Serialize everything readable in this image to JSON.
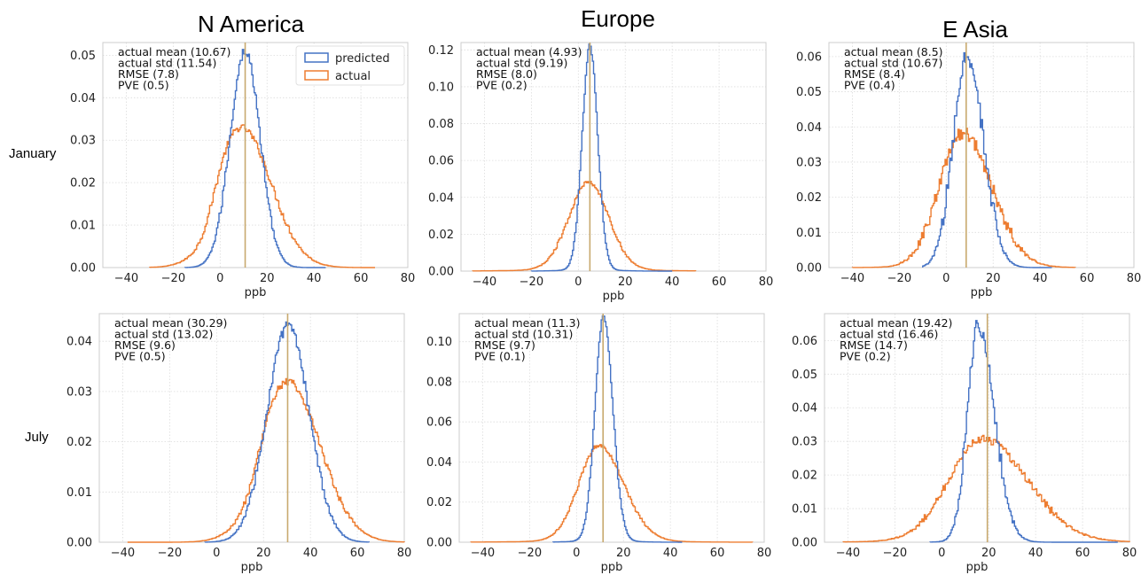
{
  "figure": {
    "columns": [
      "N America",
      "Europe",
      "E Asia"
    ],
    "rows": [
      "January",
      "July"
    ]
  },
  "legend": {
    "predicted": "predicted",
    "actual": "actual"
  },
  "colors": {
    "predicted": "#4472c4",
    "actual": "#ed7d31",
    "meanline": "#c8a96e",
    "grid": "#dcdcdc",
    "spine": "#cccccc"
  },
  "chart_data": [
    {
      "id": "jan-na",
      "type": "histogram",
      "xlabel": "ppb",
      "xlim": [
        -50,
        80
      ],
      "ylim": [
        0,
        0.053
      ],
      "xticks": [
        -40,
        -20,
        0,
        20,
        40,
        60,
        80
      ],
      "yticks": [
        0.0,
        0.01,
        0.02,
        0.03,
        0.04,
        0.05
      ],
      "ytick_labels": [
        "0.00",
        "0.01",
        "0.02",
        "0.03",
        "0.04",
        "0.05"
      ],
      "annotations": [
        "actual mean (10.67)",
        "actual std (11.54)",
        "RMSE (7.8)",
        "PVE (0.5)"
      ],
      "mean_line": 10.67,
      "show_legend": true,
      "series": [
        {
          "name": "predicted",
          "dist": {
            "mu": 10.67,
            "sigma": 6.4,
            "peak": 0.051,
            "skew": 0,
            "tails": 0,
            "noise": 0.0012
          },
          "range": [
            -15,
            45
          ]
        },
        {
          "name": "actual",
          "dist": {
            "mu": 9.0,
            "sigma": 11.54,
            "peak": 0.033,
            "skew": 0.1,
            "tails": 0,
            "noise": 0.0008,
            "flat": 0.5
          },
          "range": [
            -30,
            66
          ]
        }
      ]
    },
    {
      "id": "jan-eu",
      "type": "histogram",
      "xlabel": "ppb",
      "xlim": [
        -50,
        80
      ],
      "ylim": [
        0,
        0.124
      ],
      "xticks": [
        -40,
        -20,
        0,
        20,
        40,
        60,
        80
      ],
      "yticks": [
        0.0,
        0.02,
        0.04,
        0.06,
        0.08,
        0.1,
        0.12
      ],
      "ytick_labels": [
        "0.00",
        "0.02",
        "0.04",
        "0.06",
        "0.08",
        "0.10",
        "0.12"
      ],
      "annotations": [
        "actual mean (4.93)",
        "actual std (9.19)",
        "RMSE (8.0)",
        "PVE (0.2)"
      ],
      "mean_line": 4.93,
      "show_legend": false,
      "series": [
        {
          "name": "predicted",
          "dist": {
            "mu": 5.0,
            "sigma": 3.3,
            "peak": 0.119,
            "skew": 0,
            "tails": 0.15,
            "noise": 0.0015
          },
          "range": [
            -20,
            40
          ]
        },
        {
          "name": "actual",
          "dist": {
            "mu": 4.5,
            "sigma": 8.5,
            "peak": 0.046,
            "skew": 0,
            "tails": 0.3,
            "noise": 0.001
          },
          "range": [
            -45,
            50
          ]
        }
      ]
    },
    {
      "id": "jan-ea",
      "type": "histogram",
      "xlabel": "ppb",
      "xlim": [
        -50,
        80
      ],
      "ylim": [
        0,
        0.064
      ],
      "xticks": [
        -40,
        -20,
        0,
        20,
        40,
        60,
        80
      ],
      "yticks": [
        0.0,
        0.01,
        0.02,
        0.03,
        0.04,
        0.05,
        0.06
      ],
      "ytick_labels": [
        "0.00",
        "0.01",
        "0.02",
        "0.03",
        "0.04",
        "0.05",
        "0.06"
      ],
      "annotations": [
        "actual mean (8.5)",
        "actual std (10.67)",
        "RMSE (8.4)",
        "PVE (0.4)"
      ],
      "mean_line": 8.5,
      "show_legend": false,
      "series": [
        {
          "name": "predicted",
          "dist": {
            "mu": 9.0,
            "sigma": 6.0,
            "peak": 0.06,
            "skew": 0.15,
            "tails": 0,
            "noise": 0.0028
          },
          "range": [
            -10,
            45
          ]
        },
        {
          "name": "actual",
          "dist": {
            "mu": 7.0,
            "sigma": 10.0,
            "peak": 0.038,
            "skew": 0.25,
            "tails": 0.05,
            "noise": 0.0018
          },
          "range": [
            -40,
            55
          ]
        }
      ]
    },
    {
      "id": "jul-na",
      "type": "histogram",
      "xlabel": "ppb",
      "xlim": [
        -50,
        80
      ],
      "ylim": [
        0,
        0.0455
      ],
      "xticks": [
        -40,
        -20,
        0,
        20,
        40,
        60,
        80
      ],
      "yticks": [
        0.0,
        0.01,
        0.02,
        0.03,
        0.04
      ],
      "ytick_labels": [
        "0.00",
        "0.01",
        "0.02",
        "0.03",
        "0.04"
      ],
      "annotations": [
        "actual mean (30.29)",
        "actual std (13.02)",
        "RMSE (9.6)",
        "PVE (0.5)"
      ],
      "mean_line": 30.29,
      "show_legend": false,
      "series": [
        {
          "name": "predicted",
          "dist": {
            "mu": 30.5,
            "sigma": 9.0,
            "peak": 0.043,
            "skew": 0,
            "tails": 0,
            "noise": 0.001
          },
          "range": [
            -5,
            65
          ]
        },
        {
          "name": "actual",
          "dist": {
            "mu": 30.29,
            "sigma": 12.5,
            "peak": 0.032,
            "skew": 0.1,
            "tails": 0,
            "noise": 0.0007,
            "flat": 0.4
          },
          "range": [
            -38,
            80
          ]
        }
      ]
    },
    {
      "id": "jul-eu",
      "type": "histogram",
      "xlabel": "ppb",
      "xlim": [
        -50,
        80
      ],
      "ylim": [
        0,
        0.114
      ],
      "xticks": [
        -40,
        -20,
        0,
        20,
        40,
        60,
        80
      ],
      "yticks": [
        0.0,
        0.02,
        0.04,
        0.06,
        0.08,
        0.1
      ],
      "ytick_labels": [
        "0.00",
        "0.02",
        "0.04",
        "0.06",
        "0.08",
        "0.10"
      ],
      "annotations": [
        "actual mean (11.3)",
        "actual std (10.31)",
        "RMSE (9.7)",
        "PVE (0.1)"
      ],
      "mean_line": 11.3,
      "show_legend": false,
      "series": [
        {
          "name": "predicted",
          "dist": {
            "mu": 11.5,
            "sigma": 3.6,
            "peak": 0.11,
            "skew": 0.1,
            "tails": 0.15,
            "noise": 0.0013
          },
          "range": [
            -10,
            45
          ]
        },
        {
          "name": "actual",
          "dist": {
            "mu": 9.5,
            "sigma": 8.5,
            "peak": 0.046,
            "skew": 0.25,
            "tails": 0.3,
            "noise": 0.0009
          },
          "range": [
            -45,
            75
          ]
        }
      ]
    },
    {
      "id": "jul-ea",
      "type": "histogram",
      "xlabel": "ppb",
      "xlim": [
        -50,
        80
      ],
      "ylim": [
        0,
        0.068
      ],
      "xticks": [
        -40,
        -20,
        0,
        20,
        40,
        60,
        80
      ],
      "yticks": [
        0.0,
        0.01,
        0.02,
        0.03,
        0.04,
        0.05,
        0.06
      ],
      "ytick_labels": [
        "0.00",
        "0.01",
        "0.02",
        "0.03",
        "0.04",
        "0.05",
        "0.06"
      ],
      "annotations": [
        "actual mean (19.42)",
        "actual std (16.46)",
        "RMSE (14.7)",
        "PVE (0.2)"
      ],
      "mean_line": 19.42,
      "show_legend": false,
      "series": [
        {
          "name": "predicted",
          "dist": {
            "mu": 15.5,
            "sigma": 4.6,
            "peak": 0.064,
            "skew": 0.5,
            "tails": 0.05,
            "noise": 0.0025
          },
          "range": [
            -5,
            75
          ]
        },
        {
          "name": "actual",
          "dist": {
            "mu": 17.5,
            "sigma": 14.5,
            "peak": 0.03,
            "skew": 0.3,
            "tails": 0.15,
            "noise": 0.0012
          },
          "range": [
            -42,
            80
          ]
        }
      ]
    }
  ]
}
